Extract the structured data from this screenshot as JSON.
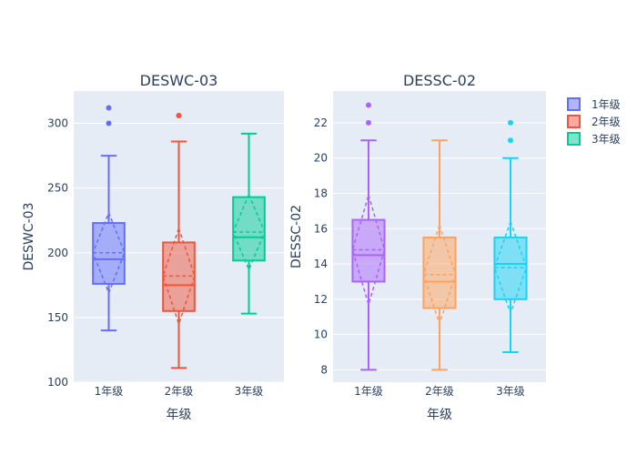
{
  "chart_data": [
    {
      "type": "box",
      "title": "DESWC-03",
      "xlabel": "年级",
      "ylabel": "DESWC-03",
      "categories": [
        "1年级",
        "2年级",
        "3年级"
      ],
      "ylim": [
        100,
        325
      ],
      "yticks": [
        100,
        150,
        200,
        250,
        300
      ],
      "grid": true,
      "series": [
        {
          "name": "1年级",
          "color": "#636efa",
          "lowerfence": 140,
          "q1": 176,
          "median": 195,
          "q3": 223,
          "upperfence": 275,
          "mean": 200,
          "sd": 31,
          "outliers": [
            300,
            312
          ]
        },
        {
          "name": "2年级",
          "color": "#ef553b",
          "lowerfence": 111,
          "q1": 155,
          "median": 175,
          "q3": 208,
          "upperfence": 286,
          "mean": 182,
          "sd": 37,
          "outliers": [
            306
          ]
        },
        {
          "name": "3年级",
          "color": "#00cc96",
          "lowerfence": 153,
          "q1": 194,
          "median": 212,
          "q3": 243,
          "upperfence": 292,
          "mean": 216,
          "sd": 29,
          "outliers": []
        }
      ]
    },
    {
      "type": "box",
      "title": "DESSC-02",
      "xlabel": "年级",
      "ylabel": "DESSC-02",
      "categories": [
        "1年级",
        "2年级",
        "3年级"
      ],
      "ylim": [
        7.3,
        23.8
      ],
      "yticks": [
        8,
        10,
        12,
        14,
        16,
        18,
        20,
        22
      ],
      "grid": true,
      "series": [
        {
          "name": "1年级",
          "color": "#ab63fa",
          "lowerfence": 8,
          "q1": 13,
          "median": 14.5,
          "q3": 16.5,
          "upperfence": 21,
          "mean": 14.8,
          "sd": 3.1,
          "outliers": [
            22,
            23
          ]
        },
        {
          "name": "2年级",
          "color": "#ffa15a",
          "lowerfence": 8,
          "q1": 11.5,
          "median": 13,
          "q3": 15.5,
          "upperfence": 21,
          "mean": 13.4,
          "sd": 2.8,
          "outliers": []
        },
        {
          "name": "3年级",
          "color": "#19d3f3",
          "lowerfence": 9,
          "q1": 12,
          "median": 14,
          "q3": 15.5,
          "upperfence": 20,
          "mean": 13.8,
          "sd": 2.6,
          "outliers": [
            21,
            22
          ]
        }
      ]
    }
  ],
  "legend": {
    "placement": "top-right",
    "items": [
      {
        "label": "1年级",
        "color": "#636efa"
      },
      {
        "label": "2年级",
        "color": "#ef553b"
      },
      {
        "label": "3年级",
        "color": "#00cc96"
      }
    ]
  }
}
